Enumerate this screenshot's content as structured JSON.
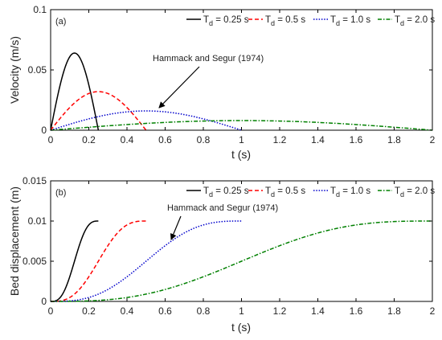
{
  "chart_data": [
    {
      "type": "line",
      "panel_label": "(a)",
      "xlabel": "t (s)",
      "ylabel": "Velocity (m/s)",
      "xlim": [
        0,
        2
      ],
      "ylim": [
        0,
        0.1
      ],
      "xticks": [
        0,
        0.2,
        0.4,
        0.6,
        0.8,
        1,
        1.2,
        1.4,
        1.6,
        1.8,
        2
      ],
      "xtick_labels": [
        "0",
        "0.2",
        "0.4",
        "0.6",
        "0.8",
        "1",
        "1.2",
        "1.4",
        "1.6",
        "1.8",
        "2"
      ],
      "yticks": [
        0,
        0.05,
        0.1
      ],
      "ytick_labels": [
        "0",
        "0.05",
        "0.1"
      ],
      "grid": false,
      "legend_position": "top-right",
      "annotation": {
        "text": "Hammack and Segur (1974)",
        "arrow_to": [
          0.55,
          0.017
        ]
      },
      "series": [
        {
          "name": "T_d = 0.25 s",
          "name_parts": [
            "T",
            "d",
            " = 0.25 s"
          ],
          "color": "#000000",
          "dash": "solid",
          "peak_t": 0.125,
          "duration": 0.25,
          "peak_value": 0.064
        },
        {
          "name": "T_d = 0.5 s",
          "name_parts": [
            "T",
            "d",
            " = 0.5 s"
          ],
          "color": "#ff0000",
          "dash": "dashed",
          "peak_t": 0.25,
          "duration": 0.5,
          "peak_value": 0.032
        },
        {
          "name": "T_d = 1.0 s",
          "name_parts": [
            "T",
            "d",
            " = 1.0 s"
          ],
          "color": "#0000cc",
          "dash": "dotted",
          "peak_t": 0.5,
          "duration": 1.0,
          "peak_value": 0.016
        },
        {
          "name": "T_d = 2.0 s",
          "name_parts": [
            "T",
            "d",
            " = 2.0 s"
          ],
          "color": "#008000",
          "dash": "dashdot",
          "peak_t": 1.0,
          "duration": 2.0,
          "peak_value": 0.008
        }
      ]
    },
    {
      "type": "line",
      "panel_label": "(b)",
      "xlabel": "t (s)",
      "ylabel": "Bed displacement (m)",
      "xlim": [
        0,
        2
      ],
      "ylim": [
        0,
        0.015
      ],
      "xticks": [
        0,
        0.2,
        0.4,
        0.6,
        0.8,
        1,
        1.2,
        1.4,
        1.6,
        1.8,
        2
      ],
      "xtick_labels": [
        "0",
        "0.2",
        "0.4",
        "0.6",
        "0.8",
        "1",
        "1.2",
        "1.4",
        "1.6",
        "1.8",
        "2"
      ],
      "yticks": [
        0,
        0.005,
        0.01,
        0.015
      ],
      "ytick_labels": [
        "0",
        "0.005",
        "0.01",
        "0.015"
      ],
      "grid": false,
      "legend_position": "top-right",
      "annotation": {
        "text": "Hammack and Segur (1974)",
        "arrow_to": [
          0.6,
          0.0065
        ]
      },
      "series": [
        {
          "name": "T_d = 0.25 s",
          "name_parts": [
            "T",
            "d",
            " = 0.25 s"
          ],
          "color": "#000000",
          "dash": "solid",
          "duration": 0.25,
          "final_value": 0.01
        },
        {
          "name": "T_d = 0.5 s",
          "name_parts": [
            "T",
            "d",
            " = 0.5 s"
          ],
          "color": "#ff0000",
          "dash": "dashed",
          "duration": 0.5,
          "final_value": 0.01
        },
        {
          "name": "T_d = 1.0 s",
          "name_parts": [
            "T",
            "d",
            " = 1.0 s"
          ],
          "color": "#0000cc",
          "dash": "dotted",
          "duration": 1.0,
          "final_value": 0.01
        },
        {
          "name": "T_d = 2.0 s",
          "name_parts": [
            "T",
            "d",
            " = 2.0 s"
          ],
          "color": "#008000",
          "dash": "dashdot",
          "duration": 2.0,
          "final_value": 0.01
        }
      ]
    }
  ]
}
